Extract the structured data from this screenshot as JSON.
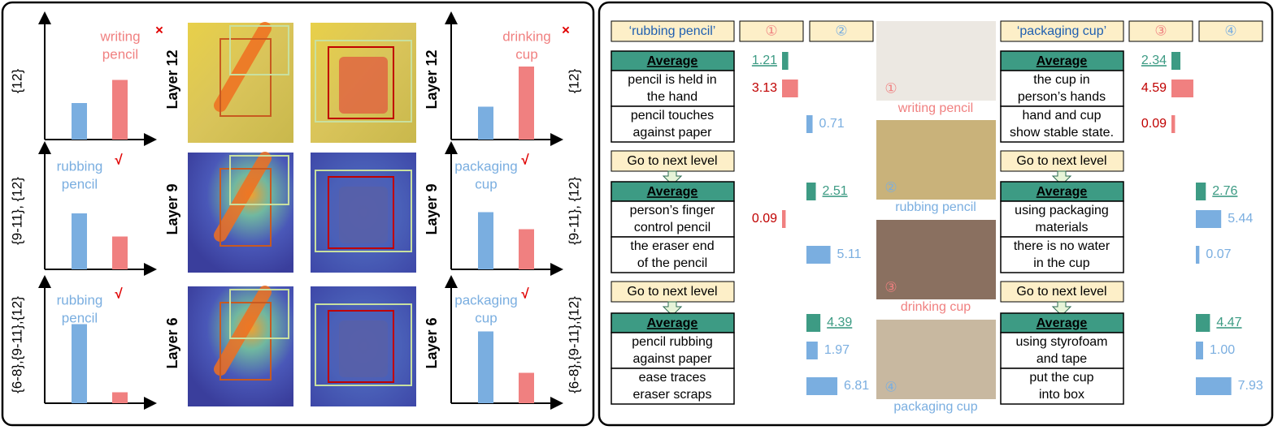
{
  "left": {
    "ylim": [
      0,
      1
    ],
    "rows": [
      {
        "scope": "{12}",
        "layer": "Layer 12",
        "charts": [
          {
            "label": [
              "writing",
              "pencil"
            ],
            "mark": "×",
            "values": [
              0.3,
              0.49
            ]
          },
          {
            "label": [
              "drinking",
              "cup"
            ],
            "mark": "×",
            "values": [
              0.27,
              0.6
            ]
          }
        ]
      },
      {
        "scope": "{9-11}, {12}",
        "layer": "Layer 9",
        "charts": [
          {
            "label": [
              "rubbing",
              "pencil"
            ],
            "mark": "√",
            "values": [
              0.46,
              0.27
            ]
          },
          {
            "label": [
              "packaging",
              "cup"
            ],
            "mark": "√",
            "values": [
              0.47,
              0.33
            ]
          }
        ]
      },
      {
        "scope": "{6-8},{9-11},{12}",
        "layer": "Layer 6",
        "charts": [
          {
            "label": [
              "rubbing",
              "pencil"
            ],
            "mark": "√",
            "values": [
              0.65,
              0.09
            ]
          },
          {
            "label": [
              "packaging",
              "cup"
            ],
            "mark": "√",
            "values": [
              0.59,
              0.25
            ]
          }
        ]
      }
    ]
  },
  "right": {
    "next_button": "Go to next level",
    "images": [
      {
        "number": "①",
        "caption": "writing pencil"
      },
      {
        "number": "②",
        "caption": "rubbing pencil"
      },
      {
        "number": "③",
        "caption": "drinking cup"
      },
      {
        "number": "④",
        "caption": "packaging cup"
      }
    ],
    "queries": [
      {
        "title": "‘rubbing pencil’",
        "columns": [
          "①",
          "②"
        ],
        "levels": [
          [
            {
              "text": [
                "Average"
              ],
              "values": [
                1.21,
                null
              ],
              "value_labels": [
                "1.21",
                null
              ]
            },
            {
              "text": [
                "pencil is held in",
                "the hand"
              ],
              "values": [
                3.13,
                null
              ],
              "value_labels": [
                "3.13",
                null
              ]
            },
            {
              "text": [
                "pencil touches",
                "against paper"
              ],
              "values": [
                null,
                0.71
              ],
              "value_labels": [
                null,
                "0.71"
              ]
            }
          ],
          [
            {
              "text": [
                "Average"
              ],
              "values": [
                null,
                2.51
              ],
              "value_labels": [
                null,
                "2.51"
              ]
            },
            {
              "text": [
                "person’s finger",
                "control pencil"
              ],
              "values": [
                0.09,
                null
              ],
              "value_labels": [
                "0.09",
                null
              ]
            },
            {
              "text": [
                "the eraser end",
                "of the pencil"
              ],
              "values": [
                null,
                5.11
              ],
              "value_labels": [
                null,
                "5.11"
              ]
            }
          ],
          [
            {
              "text": [
                "Average"
              ],
              "values": [
                null,
                4.39
              ],
              "value_labels": [
                null,
                "4.39"
              ]
            },
            {
              "text": [
                "pencil rubbing",
                "against paper"
              ],
              "values": [
                null,
                1.97
              ],
              "value_labels": [
                null,
                "1.97"
              ]
            },
            {
              "text": [
                "ease traces",
                "eraser scraps"
              ],
              "values": [
                null,
                6.81
              ],
              "value_labels": [
                null,
                "6.81"
              ]
            }
          ]
        ]
      },
      {
        "title": "‘packaging cup’",
        "columns": [
          "③",
          "④"
        ],
        "levels": [
          [
            {
              "text": [
                "Average"
              ],
              "values": [
                2.34,
                null
              ],
              "value_labels": [
                "2.34",
                null
              ]
            },
            {
              "text": [
                "the cup in",
                "person’s hands"
              ],
              "values": [
                4.59,
                null
              ],
              "value_labels": [
                "4.59",
                null
              ]
            },
            {
              "text": [
                "hand and cup",
                "show stable state."
              ],
              "values": [
                0.09,
                null
              ],
              "value_labels": [
                "0.09",
                null
              ]
            }
          ],
          [
            {
              "text": [
                "Average"
              ],
              "values": [
                null,
                2.76
              ],
              "value_labels": [
                null,
                "2.76"
              ]
            },
            {
              "text": [
                "using packaging",
                "materials"
              ],
              "values": [
                null,
                5.44
              ],
              "value_labels": [
                null,
                "5.44"
              ]
            },
            {
              "text": [
                "there is no water",
                "in the cup"
              ],
              "values": [
                null,
                0.07
              ],
              "value_labels": [
                null,
                "0.07"
              ]
            }
          ],
          [
            {
              "text": [
                "Average"
              ],
              "values": [
                null,
                4.47
              ],
              "value_labels": [
                null,
                "4.47"
              ]
            },
            {
              "text": [
                "using styrofoam",
                "and tape"
              ],
              "values": [
                null,
                1.0
              ],
              "value_labels": [
                null,
                "1.00"
              ]
            },
            {
              "text": [
                "put the cup",
                "into box"
              ],
              "values": [
                null,
                7.93
              ],
              "value_labels": [
                null,
                "7.93"
              ]
            }
          ]
        ]
      }
    ]
  }
}
